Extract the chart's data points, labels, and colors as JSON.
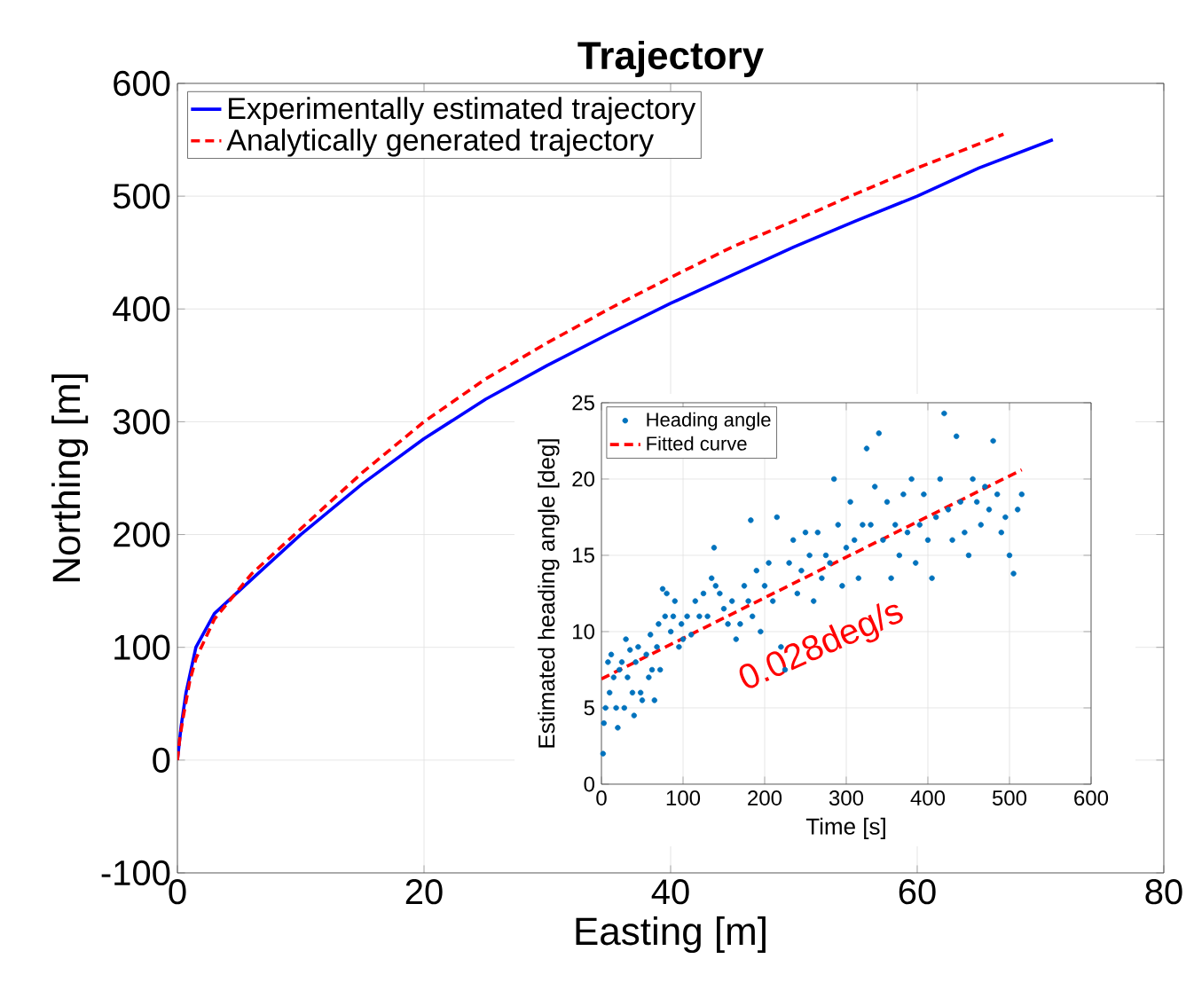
{
  "chart_data": [
    {
      "type": "line",
      "title": "Trajectory",
      "xlabel": "Easting [m]",
      "ylabel": "Northing [m]",
      "xlim": [
        0,
        80
      ],
      "ylim": [
        -100,
        600
      ],
      "xticks": [
        0,
        20,
        40,
        60,
        80
      ],
      "yticks": [
        -100,
        0,
        100,
        200,
        300,
        400,
        500,
        600
      ],
      "grid": true,
      "legend": "top left",
      "series": [
        {
          "name": "Experimentally estimated trajectory",
          "color": "#0000ff",
          "line_style": "solid",
          "x": [
            0,
            0.15,
            0.3,
            0.7,
            1.5,
            3,
            5,
            7,
            10,
            15,
            20,
            25,
            30,
            35,
            40,
            45,
            50,
            55,
            60,
            65,
            71
          ],
          "values": [
            0,
            15,
            30,
            60,
            100,
            130,
            150,
            170,
            200,
            245,
            285,
            320,
            350,
            378,
            405,
            430,
            455,
            478,
            500,
            525,
            550
          ]
        },
        {
          "name": "Analytically generated trajectory",
          "color": "#ff0000",
          "line_style": "dashed",
          "x": [
            0,
            0.2,
            0.5,
            1,
            1.5,
            3,
            6,
            8,
            10,
            15,
            20,
            25,
            30,
            35,
            40,
            45,
            50,
            55,
            60,
            64,
            67
          ],
          "values": [
            0,
            20,
            40,
            70,
            90,
            125,
            165,
            185,
            205,
            255,
            300,
            338,
            370,
            400,
            428,
            455,
            478,
            502,
            525,
            542,
            555
          ]
        }
      ]
    },
    {
      "type": "scatter",
      "xlabel": "Time [s]",
      "ylabel": "Estimated heading angle [deg]",
      "xlim": [
        0,
        600
      ],
      "ylim": [
        0,
        25
      ],
      "xticks": [
        0,
        100,
        200,
        300,
        400,
        500,
        600
      ],
      "yticks": [
        0,
        5,
        10,
        15,
        20,
        25
      ],
      "grid": true,
      "legend": "top left",
      "annotations": [
        "0.028deg/s"
      ],
      "series": [
        {
          "name": "Heading angle",
          "type": "scatter",
          "marker": "circle",
          "color": "#0072bd",
          "x": [
            2,
            3,
            5,
            8,
            10,
            12,
            15,
            18,
            20,
            22,
            25,
            28,
            30,
            32,
            35,
            38,
            40,
            42,
            45,
            48,
            50,
            55,
            58,
            60,
            62,
            65,
            68,
            70,
            72,
            75,
            78,
            80,
            85,
            88,
            90,
            95,
            98,
            100,
            105,
            110,
            115,
            120,
            125,
            130,
            135,
            138,
            140,
            145,
            150,
            155,
            160,
            165,
            170,
            175,
            180,
            183,
            185,
            190,
            195,
            200,
            205,
            210,
            215,
            220,
            225,
            230,
            235,
            240,
            245,
            250,
            255,
            260,
            265,
            270,
            275,
            280,
            285,
            290,
            295,
            300,
            305,
            310,
            315,
            320,
            325,
            330,
            335,
            340,
            345,
            350,
            355,
            360,
            365,
            370,
            375,
            380,
            385,
            390,
            395,
            400,
            405,
            410,
            415,
            420,
            425,
            430,
            435,
            440,
            445,
            450,
            455,
            460,
            465,
            470,
            475,
            480,
            485,
            490,
            495,
            500,
            505,
            510,
            515
          ],
          "values": [
            2,
            4,
            5,
            8,
            6,
            8.5,
            7,
            5,
            3.7,
            7.5,
            8,
            5,
            9.5,
            7,
            8.8,
            6,
            4.5,
            8,
            9,
            6,
            5.5,
            8.5,
            7,
            9.8,
            7.5,
            5.5,
            9,
            10.5,
            7.5,
            12.8,
            11,
            12.5,
            10,
            11,
            12,
            9,
            10.5,
            9.5,
            11,
            9.8,
            12,
            11,
            12.5,
            11,
            13.5,
            15.5,
            13,
            12.5,
            11.5,
            10.5,
            12,
            9.5,
            10.5,
            13,
            12,
            17.3,
            11,
            14,
            10,
            13,
            14.5,
            12,
            17.5,
            9,
            7.5,
            14.5,
            16,
            12.5,
            14,
            16.5,
            15,
            12,
            16.5,
            13.5,
            15,
            14.5,
            20,
            17,
            13,
            15.5,
            18.5,
            16,
            13.5,
            17,
            22,
            17,
            19.5,
            23,
            16,
            18.5,
            13.5,
            17,
            15,
            19,
            16.5,
            20,
            14.5,
            17,
            19,
            16,
            13.5,
            17.5,
            20,
            24.3,
            18,
            16,
            22.8,
            18.5,
            16.5,
            15,
            20,
            18.5,
            17,
            19.5,
            18,
            22.5,
            19,
            16.5,
            17.5,
            15,
            13.8,
            18,
            19
          ]
        },
        {
          "name": "Fitted curve",
          "type": "line",
          "line_style": "dashed",
          "color": "#ff0000",
          "x": [
            0,
            515
          ],
          "values": [
            6.9,
            20.6
          ]
        }
      ]
    }
  ]
}
